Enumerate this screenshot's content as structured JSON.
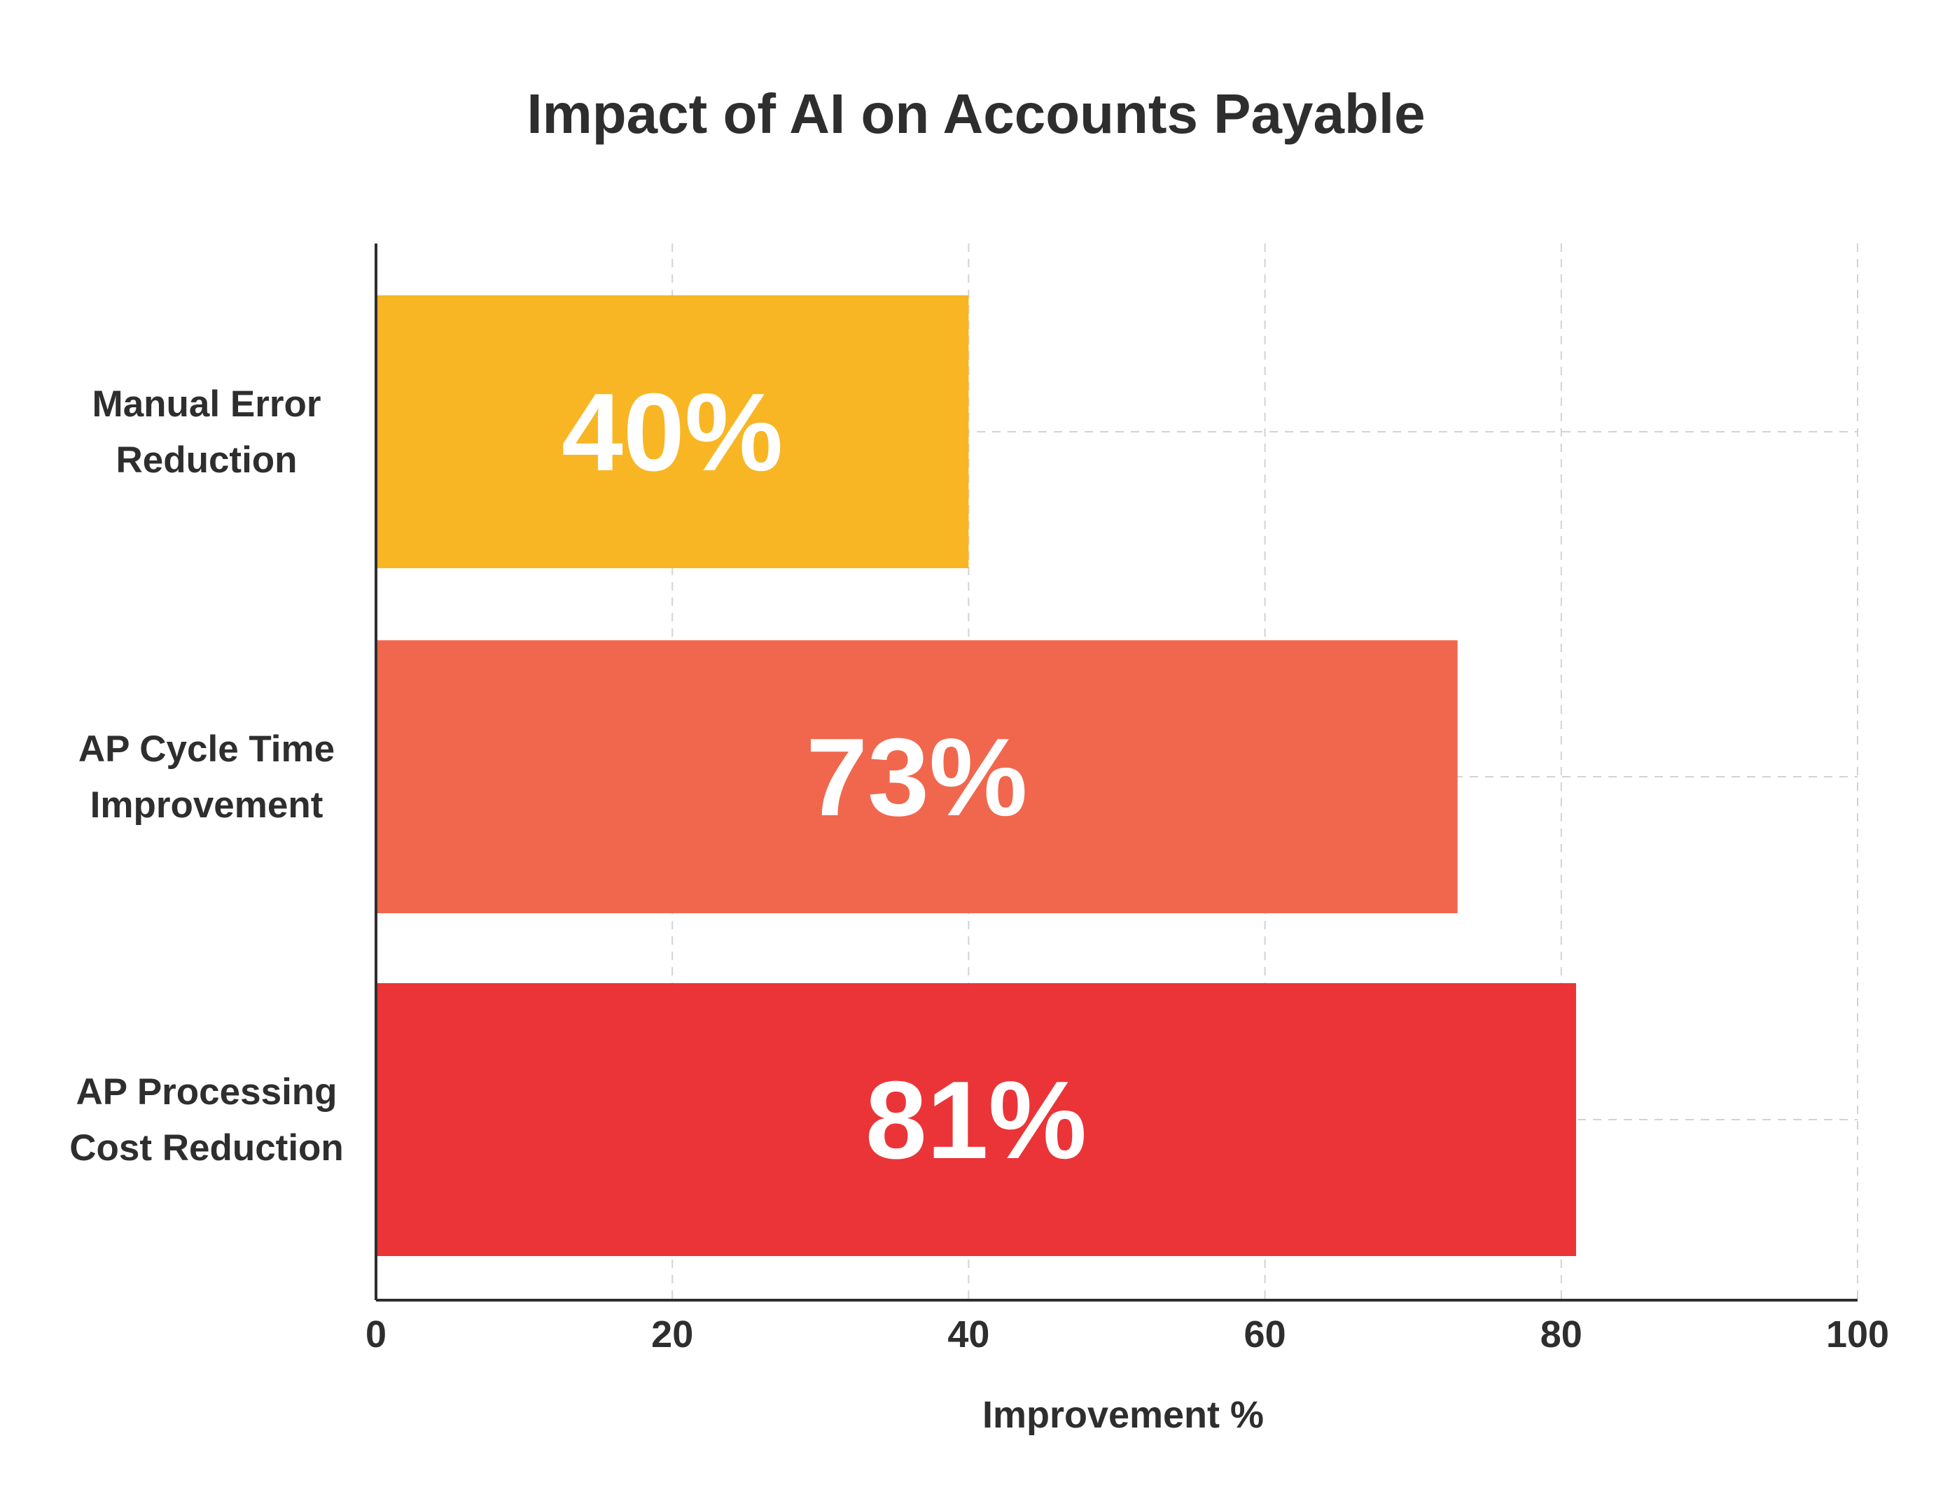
{
  "chart_data": {
    "type": "bar",
    "orientation": "horizontal",
    "title": "Impact of AI on Accounts Payable",
    "xlabel": "Improvement %",
    "ylabel": "",
    "xlim": [
      0,
      100
    ],
    "x_ticks": [
      "0",
      "20",
      "40",
      "60",
      "80",
      "100"
    ],
    "categories": [
      [
        "Manual Error",
        "Reduction"
      ],
      [
        "AP Cycle Time",
        "Improvement"
      ],
      [
        "AP Processing",
        "Cost Reduction"
      ]
    ],
    "values": [
      40,
      73,
      81
    ],
    "data_labels": [
      "40%",
      "73%",
      "81%"
    ],
    "colors": [
      "#F8B624",
      "#F1674D",
      "#EB3437"
    ],
    "text_color": "#2E2E2E",
    "data_label_color": "#FFFFFF",
    "grid": true,
    "grid_style": "dashed",
    "grid_color": "#D3D3D6"
  }
}
